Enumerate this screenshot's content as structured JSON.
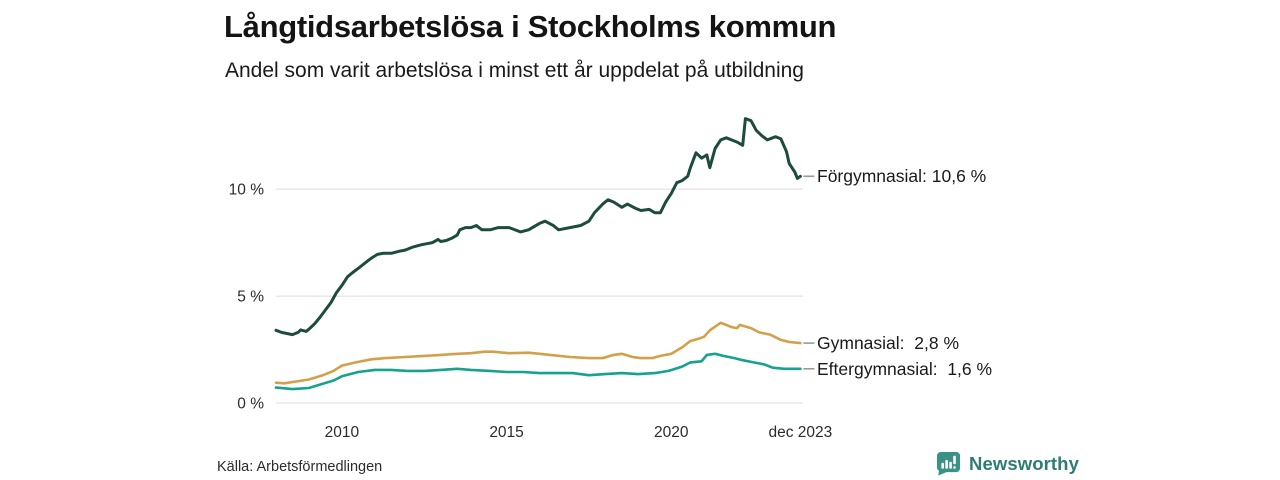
{
  "chart_data": {
    "type": "line",
    "title": "Långtidsarbetslösa i Stockholms kommun",
    "subtitle": "Andel som varit arbetslösa i minst ett år uppdelat på utbildning",
    "xlabel": "",
    "ylabel": "",
    "xlim": [
      2008,
      2024
    ],
    "ylim": [
      0,
      13.7
    ],
    "grid": "horizontal",
    "legend_position": "right-end-labels",
    "x_ticks": [
      {
        "value": 2010.0,
        "label": "2010"
      },
      {
        "value": 2015.0,
        "label": "2015"
      },
      {
        "value": 2020.0,
        "label": "2020"
      },
      {
        "value": 2023.92,
        "label": "dec 2023"
      }
    ],
    "y_ticks": [
      {
        "value": 0,
        "label": "0 %"
      },
      {
        "value": 5,
        "label": "5 %"
      },
      {
        "value": 10,
        "label": "10 %"
      }
    ],
    "colors": {
      "grid": "#dcdcdc",
      "connector": "#999999",
      "tick_text": "#2b2b2b",
      "label_text": "#1a1a1a"
    },
    "series": [
      {
        "id": "forgymnasial",
        "name": "Förgymnasial",
        "label": "Förgymnasial: 10,6 %",
        "last_value_text": "10,6 %",
        "color": "#1d4b3e",
        "points": [
          [
            2008.0,
            3.4
          ],
          [
            2008.17,
            3.3
          ],
          [
            2008.33,
            3.25
          ],
          [
            2008.5,
            3.2
          ],
          [
            2008.67,
            3.3
          ],
          [
            2008.75,
            3.42
          ],
          [
            2008.92,
            3.35
          ],
          [
            2009.0,
            3.45
          ],
          [
            2009.17,
            3.7
          ],
          [
            2009.33,
            4.0
          ],
          [
            2009.5,
            4.35
          ],
          [
            2009.67,
            4.7
          ],
          [
            2009.83,
            5.15
          ],
          [
            2010.0,
            5.5
          ],
          [
            2010.17,
            5.9
          ],
          [
            2010.33,
            6.1
          ],
          [
            2010.5,
            6.3
          ],
          [
            2010.75,
            6.6
          ],
          [
            2010.83,
            6.7
          ],
          [
            2010.92,
            6.8
          ],
          [
            2011.08,
            6.95
          ],
          [
            2011.25,
            7.0
          ],
          [
            2011.5,
            7.0
          ],
          [
            2011.75,
            7.1
          ],
          [
            2011.92,
            7.15
          ],
          [
            2012.17,
            7.3
          ],
          [
            2012.42,
            7.4
          ],
          [
            2012.58,
            7.45
          ],
          [
            2012.75,
            7.5
          ],
          [
            2012.92,
            7.65
          ],
          [
            2013.0,
            7.55
          ],
          [
            2013.17,
            7.6
          ],
          [
            2013.33,
            7.7
          ],
          [
            2013.5,
            7.85
          ],
          [
            2013.58,
            8.1
          ],
          [
            2013.75,
            8.2
          ],
          [
            2013.92,
            8.2
          ],
          [
            2014.08,
            8.3
          ],
          [
            2014.25,
            8.1
          ],
          [
            2014.5,
            8.1
          ],
          [
            2014.75,
            8.2
          ],
          [
            2015.08,
            8.2
          ],
          [
            2015.42,
            8.0
          ],
          [
            2015.67,
            8.1
          ],
          [
            2016.0,
            8.4
          ],
          [
            2016.17,
            8.5
          ],
          [
            2016.42,
            8.3
          ],
          [
            2016.58,
            8.1
          ],
          [
            2016.92,
            8.2
          ],
          [
            2017.25,
            8.3
          ],
          [
            2017.5,
            8.5
          ],
          [
            2017.67,
            8.9
          ],
          [
            2017.92,
            9.3
          ],
          [
            2018.08,
            9.5
          ],
          [
            2018.25,
            9.4
          ],
          [
            2018.5,
            9.15
          ],
          [
            2018.67,
            9.3
          ],
          [
            2018.92,
            9.1
          ],
          [
            2019.08,
            9.0
          ],
          [
            2019.33,
            9.05
          ],
          [
            2019.5,
            8.9
          ],
          [
            2019.67,
            8.9
          ],
          [
            2019.83,
            9.4
          ],
          [
            2020.0,
            9.8
          ],
          [
            2020.17,
            10.3
          ],
          [
            2020.33,
            10.4
          ],
          [
            2020.5,
            10.6
          ],
          [
            2020.58,
            11.0
          ],
          [
            2020.75,
            11.7
          ],
          [
            2020.92,
            11.45
          ],
          [
            2021.08,
            11.6
          ],
          [
            2021.17,
            11.0
          ],
          [
            2021.33,
            11.9
          ],
          [
            2021.5,
            12.3
          ],
          [
            2021.67,
            12.4
          ],
          [
            2021.83,
            12.3
          ],
          [
            2022.0,
            12.2
          ],
          [
            2022.17,
            12.05
          ],
          [
            2022.25,
            13.3
          ],
          [
            2022.42,
            13.2
          ],
          [
            2022.58,
            12.75
          ],
          [
            2022.75,
            12.5
          ],
          [
            2022.92,
            12.3
          ],
          [
            2023.08,
            12.4
          ],
          [
            2023.17,
            12.45
          ],
          [
            2023.33,
            12.35
          ],
          [
            2023.5,
            11.75
          ],
          [
            2023.58,
            11.2
          ],
          [
            2023.75,
            10.8
          ],
          [
            2023.83,
            10.5
          ],
          [
            2023.92,
            10.6
          ]
        ]
      },
      {
        "id": "gymnasial",
        "name": "Gymnasial",
        "label": "Gymnasial:  2,8 %",
        "last_value_text": "2,8 %",
        "color": "#d2a04a",
        "points": [
          [
            2008.0,
            0.95
          ],
          [
            2008.25,
            0.92
          ],
          [
            2008.58,
            1.0
          ],
          [
            2009.0,
            1.1
          ],
          [
            2009.42,
            1.3
          ],
          [
            2009.75,
            1.5
          ],
          [
            2010.0,
            1.75
          ],
          [
            2010.42,
            1.9
          ],
          [
            2010.92,
            2.05
          ],
          [
            2011.33,
            2.1
          ],
          [
            2011.92,
            2.15
          ],
          [
            2012.5,
            2.2
          ],
          [
            2013.0,
            2.25
          ],
          [
            2013.5,
            2.3
          ],
          [
            2013.92,
            2.33
          ],
          [
            2014.33,
            2.4
          ],
          [
            2014.58,
            2.4
          ],
          [
            2015.08,
            2.33
          ],
          [
            2015.67,
            2.35
          ],
          [
            2016.33,
            2.25
          ],
          [
            2016.92,
            2.15
          ],
          [
            2017.5,
            2.1
          ],
          [
            2017.92,
            2.1
          ],
          [
            2018.25,
            2.25
          ],
          [
            2018.5,
            2.3
          ],
          [
            2018.83,
            2.15
          ],
          [
            2019.08,
            2.1
          ],
          [
            2019.42,
            2.1
          ],
          [
            2019.67,
            2.2
          ],
          [
            2020.0,
            2.3
          ],
          [
            2020.33,
            2.6
          ],
          [
            2020.58,
            2.9
          ],
          [
            2020.83,
            3.0
          ],
          [
            2021.0,
            3.1
          ],
          [
            2021.17,
            3.4
          ],
          [
            2021.5,
            3.75
          ],
          [
            2021.67,
            3.65
          ],
          [
            2021.83,
            3.55
          ],
          [
            2022.0,
            3.5
          ],
          [
            2022.08,
            3.65
          ],
          [
            2022.42,
            3.5
          ],
          [
            2022.67,
            3.3
          ],
          [
            2023.0,
            3.2
          ],
          [
            2023.33,
            2.95
          ],
          [
            2023.58,
            2.85
          ],
          [
            2023.92,
            2.8
          ]
        ]
      },
      {
        "id": "eftergymnasial",
        "name": "Eftergymnasial",
        "label": "Eftergymnasial:  1,6 %",
        "last_value_text": "1,6 %",
        "color": "#16a28d",
        "points": [
          [
            2008.0,
            0.72
          ],
          [
            2008.5,
            0.65
          ],
          [
            2009.0,
            0.7
          ],
          [
            2009.42,
            0.9
          ],
          [
            2009.75,
            1.05
          ],
          [
            2010.0,
            1.25
          ],
          [
            2010.5,
            1.45
          ],
          [
            2011.0,
            1.55
          ],
          [
            2011.5,
            1.55
          ],
          [
            2012.0,
            1.5
          ],
          [
            2012.5,
            1.5
          ],
          [
            2013.0,
            1.55
          ],
          [
            2013.5,
            1.6
          ],
          [
            2013.92,
            1.55
          ],
          [
            2014.5,
            1.5
          ],
          [
            2015.0,
            1.45
          ],
          [
            2015.5,
            1.45
          ],
          [
            2016.0,
            1.4
          ],
          [
            2016.5,
            1.4
          ],
          [
            2017.0,
            1.4
          ],
          [
            2017.5,
            1.3
          ],
          [
            2018.0,
            1.35
          ],
          [
            2018.5,
            1.4
          ],
          [
            2019.0,
            1.35
          ],
          [
            2019.5,
            1.4
          ],
          [
            2019.92,
            1.5
          ],
          [
            2020.33,
            1.7
          ],
          [
            2020.58,
            1.9
          ],
          [
            2020.92,
            1.95
          ],
          [
            2021.08,
            2.25
          ],
          [
            2021.33,
            2.3
          ],
          [
            2021.58,
            2.2
          ],
          [
            2021.92,
            2.1
          ],
          [
            2022.17,
            2.0
          ],
          [
            2022.5,
            1.9
          ],
          [
            2022.83,
            1.8
          ],
          [
            2023.08,
            1.65
          ],
          [
            2023.42,
            1.6
          ],
          [
            2023.92,
            1.6
          ]
        ]
      }
    ]
  },
  "footer": {
    "source": "Källa: Arbetsförmedlingen",
    "brand": "Newsworthy",
    "brand_color": "#2e7c72",
    "icon_color": "#3c9187"
  }
}
